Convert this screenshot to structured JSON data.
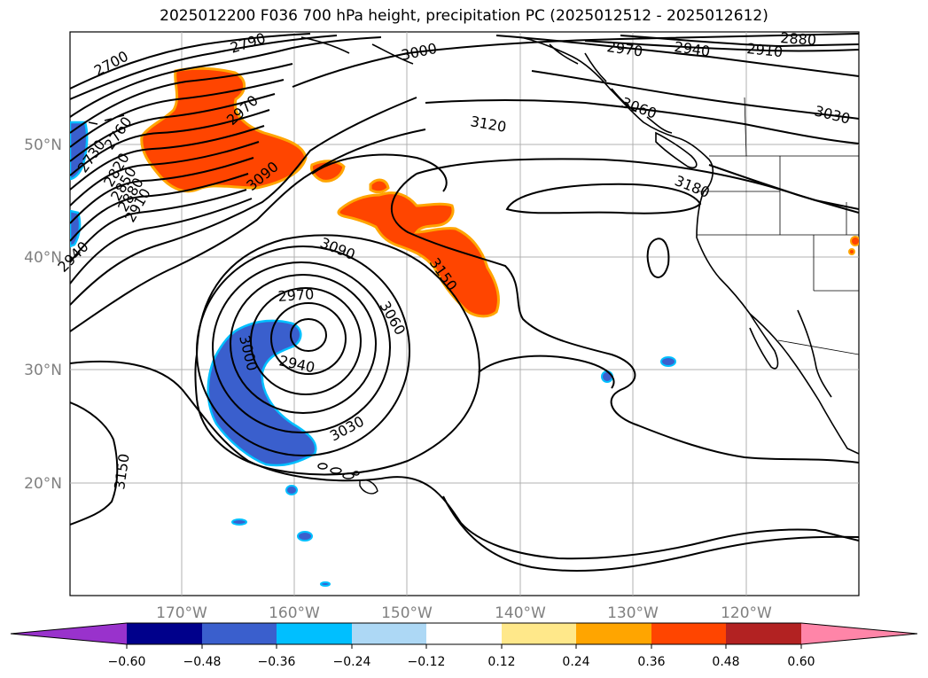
{
  "title": "2025012200 F036 700 hPa height, precipitation PC (2025012512 - 2025012612)",
  "latitude_labels": [
    "50°N",
    "40°N",
    "30°N",
    "20°N"
  ],
  "longitude_labels": [
    "170°W",
    "160°W",
    "150°W",
    "140°W",
    "130°W",
    "120°W"
  ],
  "contour_labels": [
    "2700",
    "2790",
    "3000",
    "2970",
    "2940",
    "2910",
    "2880",
    "2730",
    "2760",
    "2820",
    "2850",
    "2880",
    "2910",
    "2940",
    "2970",
    "3090",
    "3120",
    "3060",
    "3030",
    "3180",
    "3090",
    "3150",
    "2970",
    "3060",
    "3000",
    "2940",
    "3030",
    "3150"
  ],
  "colorbar": {
    "tick_labels": [
      "−0.60",
      "−0.48",
      "−0.36",
      "−0.24",
      "−0.12",
      "0.12",
      "0.24",
      "0.36",
      "0.48",
      "0.60"
    ],
    "colors": [
      "#9932cc",
      "#00008b",
      "#3a5fcd",
      "#00bfff",
      "#add8f5",
      "#ffffff",
      "#ffe88a",
      "#ffa500",
      "#ff4500",
      "#b22222",
      "#ff85a8"
    ]
  },
  "colors": {
    "negative_precip": "#3a5fcd",
    "negative_edge": "#00bfff",
    "positive_precip": "#ff4500",
    "positive_edge": "#ffa500",
    "contour": "#000000",
    "grid": "#b0b0b0"
  }
}
